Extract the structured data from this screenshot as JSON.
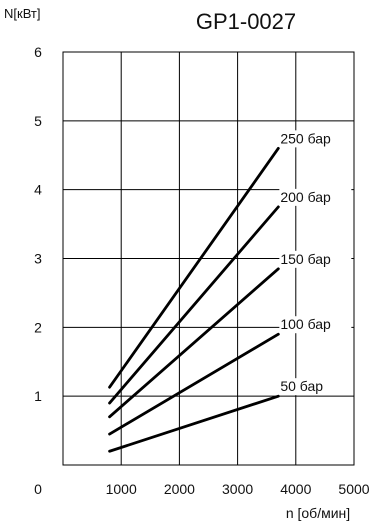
{
  "chart_data": {
    "type": "line",
    "title": "GP1-0027",
    "ylabel": "N[кВт]",
    "xlabel": "n [об/мин]",
    "xlim": [
      0,
      5000
    ],
    "ylim": [
      0,
      6
    ],
    "x_ticks": [
      1000,
      2000,
      3000,
      4000,
      5000
    ],
    "y_ticks": [
      0,
      1,
      2,
      3,
      4,
      5,
      6
    ],
    "x_tick_labels": [
      "1000",
      "2000",
      "3000",
      "4000",
      "5000"
    ],
    "y_tick_labels": [
      "0",
      "1",
      "2",
      "3",
      "4",
      "5",
      "6"
    ],
    "grid": true,
    "series": [
      {
        "name": "250 бар",
        "x": [
          800,
          3700
        ],
        "y": [
          1.13,
          4.6
        ]
      },
      {
        "name": "200 бар",
        "x": [
          800,
          3700
        ],
        "y": [
          0.9,
          3.75
        ]
      },
      {
        "name": "150 бар",
        "x": [
          800,
          3700
        ],
        "y": [
          0.7,
          2.85
        ]
      },
      {
        "name": "100 бар",
        "x": [
          800,
          3700
        ],
        "y": [
          0.45,
          1.9
        ]
      },
      {
        "name": "50 бар",
        "x": [
          800,
          3700
        ],
        "y": [
          0.2,
          1.0
        ]
      }
    ]
  }
}
